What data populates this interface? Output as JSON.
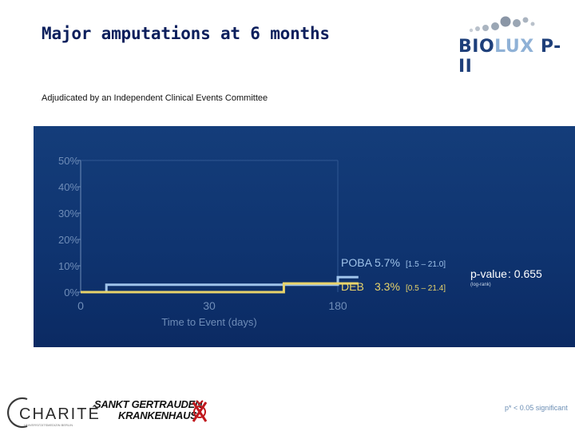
{
  "header": {
    "title": "Major amputations at 6 months",
    "subtitle": "Adjudicated by an Independent Clinical Events Committee"
  },
  "logo": {
    "part1": "BIO",
    "part2": "LUX",
    "part3": " P-II"
  },
  "chart_data": {
    "type": "line",
    "subtype": "kaplan-meier-step",
    "title": "",
    "xlabel": "Time to Event (days)",
    "ylabel": "",
    "x_ticks": [
      "0",
      "30",
      "180"
    ],
    "y_ticks": [
      "0%",
      "10%",
      "20%",
      "30%",
      "40%",
      "50%"
    ],
    "ylim": [
      0,
      50
    ],
    "grid": false,
    "legend_position": "right",
    "series": [
      {
        "name": "POBA",
        "color": "#9fc3ea",
        "label_value": "5.7%",
        "label_ci": "[1.5 – 21.0]",
        "points": [
          [
            0,
            0
          ],
          [
            0.1,
            0
          ],
          [
            0.1,
            2.8
          ],
          [
            1.0,
            2.8
          ],
          [
            1.0,
            5.7
          ],
          [
            1.08,
            5.7
          ]
        ]
      },
      {
        "name": "DEB",
        "color": "#e8d36a",
        "label_value": "3.3%",
        "label_ci": "[0.5 – 21.4]",
        "points": [
          [
            0,
            0
          ],
          [
            0.79,
            0
          ],
          [
            0.79,
            3.3
          ],
          [
            1.08,
            3.3
          ]
        ]
      }
    ],
    "pvalue_label": "p-value",
    "pvalue": ": 0.655",
    "pvalue_note": "(log-rank)"
  },
  "footer": {
    "significance_note": "p* < 0.05 significant",
    "charite_name": "CHARITÉ",
    "charite_sub": "UNIVERSITÄTSMEDIZIN BERLIN",
    "hospital_line1": "SANKT GERTRAUDEN",
    "hospital_line2": "KRANKENHAUS"
  },
  "colors": {
    "title": "#0c1f5c",
    "panel_top": "#143d7a",
    "panel_bottom": "#0b2a63",
    "axis_text": "#6f8db8"
  }
}
